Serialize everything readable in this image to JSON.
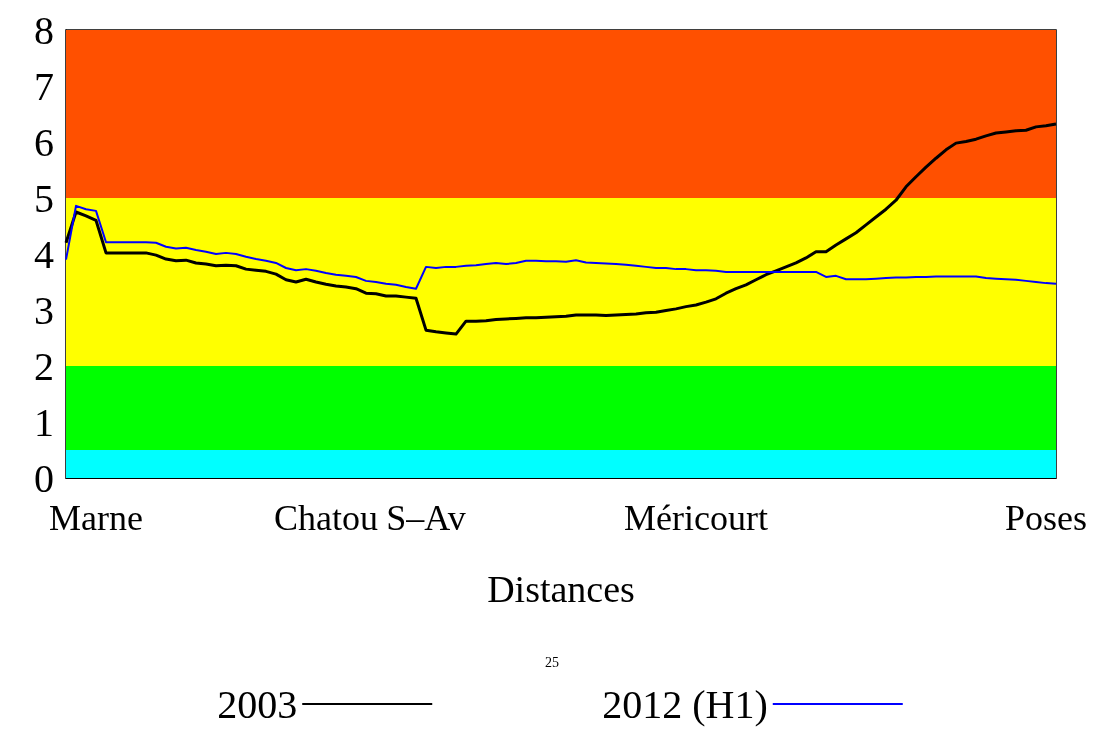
{
  "chart_data": {
    "type": "line",
    "xlabel": "Distances",
    "categories": [
      null,
      null,
      null,
      "Marne",
      null,
      null,
      null,
      null,
      null,
      null,
      null,
      null,
      null,
      null,
      null,
      null,
      null,
      null,
      null,
      null,
      null,
      null,
      null,
      null,
      null,
      null,
      "Chatou",
      null,
      null,
      null,
      null,
      null,
      null,
      null,
      null,
      null,
      "S–Av",
      null,
      null,
      null,
      null,
      null,
      null,
      null,
      null,
      null,
      null,
      null,
      null,
      null,
      null,
      null,
      null,
      null,
      null,
      null,
      null,
      null,
      null,
      null,
      null,
      null,
      null,
      "Méricourt",
      null,
      null,
      null,
      null,
      null,
      null,
      null,
      null,
      null,
      null,
      null,
      null,
      null,
      null,
      null,
      null,
      null,
      null,
      null,
      null,
      null,
      null,
      null,
      null,
      null,
      null,
      null,
      null,
      null,
      null,
      null,
      null,
      null,
      null,
      "Poses",
      null
    ],
    "series": [
      {
        "name": "2003",
        "color": "#000000",
        "values": [
          4.2,
          4.75,
          4.68,
          4.6,
          4.02,
          4.02,
          4.02,
          4.02,
          4.02,
          3.98,
          3.91,
          3.88,
          3.89,
          3.84,
          3.82,
          3.79,
          3.8,
          3.79,
          3.73,
          3.71,
          3.69,
          3.64,
          3.54,
          3.5,
          3.55,
          3.5,
          3.46,
          3.43,
          3.41,
          3.38,
          3.3,
          3.29,
          3.25,
          3.25,
          3.23,
          3.21,
          2.64,
          2.61,
          2.59,
          2.57,
          2.8,
          2.8,
          2.81,
          2.83,
          2.84,
          2.85,
          2.86,
          2.86,
          2.87,
          2.88,
          2.89,
          2.91,
          2.91,
          2.91,
          2.9,
          2.91,
          2.92,
          2.93,
          2.95,
          2.96,
          2.99,
          3.02,
          3.06,
          3.09,
          3.14,
          3.2,
          3.3,
          3.38,
          3.45,
          3.54,
          3.63,
          3.7,
          3.77,
          3.84,
          3.93,
          4.04,
          4.04,
          4.16,
          4.27,
          4.38,
          4.52,
          4.66,
          4.8,
          4.96,
          5.2,
          5.38,
          5.55,
          5.71,
          5.86,
          5.98,
          6.01,
          6.05,
          6.11,
          6.16,
          6.18,
          6.2,
          6.21,
          6.27,
          6.29,
          6.32
        ]
      },
      {
        "name": "2012 (H1)",
        "color": "#0000ff",
        "values": [
          3.9,
          4.86,
          4.8,
          4.77,
          4.21,
          4.21,
          4.21,
          4.21,
          4.21,
          4.2,
          4.13,
          4.1,
          4.11,
          4.07,
          4.04,
          4.0,
          4.02,
          4.0,
          3.95,
          3.91,
          3.88,
          3.84,
          3.75,
          3.71,
          3.73,
          3.7,
          3.66,
          3.63,
          3.61,
          3.59,
          3.52,
          3.5,
          3.47,
          3.45,
          3.41,
          3.38,
          3.77,
          3.75,
          3.77,
          3.77,
          3.79,
          3.8,
          3.82,
          3.84,
          3.82,
          3.84,
          3.88,
          3.88,
          3.87,
          3.87,
          3.86,
          3.89,
          3.85,
          3.84,
          3.83,
          3.82,
          3.81,
          3.79,
          3.77,
          3.75,
          3.75,
          3.73,
          3.73,
          3.71,
          3.71,
          3.7,
          3.68,
          3.68,
          3.68,
          3.68,
          3.68,
          3.68,
          3.68,
          3.68,
          3.68,
          3.68,
          3.59,
          3.61,
          3.55,
          3.55,
          3.55,
          3.56,
          3.57,
          3.58,
          3.58,
          3.59,
          3.59,
          3.6,
          3.6,
          3.6,
          3.6,
          3.6,
          3.57,
          3.56,
          3.55,
          3.54,
          3.52,
          3.5,
          3.48,
          3.47
        ]
      }
    ],
    "ylim": [
      0,
      8
    ],
    "yticks": [
      0,
      1,
      2,
      3,
      4,
      5,
      6,
      7,
      8
    ],
    "bands": [
      {
        "axis": "y",
        "from": 0,
        "to": 0.5,
        "color": "#00ffff"
      },
      {
        "axis": "y",
        "from": 0.5,
        "to": 2,
        "color": "#00ff00"
      },
      {
        "axis": "y",
        "from": 2,
        "to": 5,
        "color": "#ffff00"
      },
      {
        "axis": "y",
        "from": 5,
        "to": 8,
        "color": "#ff5000"
      }
    ],
    "legend": "bottom",
    "grid": false,
    "marker": "none",
    "line_style": "solid",
    "annotations": [
      "25"
    ]
  }
}
